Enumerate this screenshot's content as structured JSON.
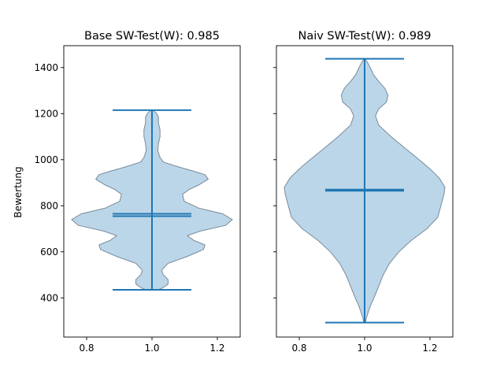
{
  "figure": {
    "background": "#ffffff"
  },
  "colors": {
    "violin_fill": "#1f77b4",
    "violin_fill_opacity": 0.3,
    "violin_edge": "#7a8a99",
    "stats_line": "#1f77b4"
  },
  "chart_data": [
    {
      "type": "violin",
      "title": "Base SW-Test(W): 0.985",
      "xlabel": "",
      "ylabel": "Bewertung",
      "xlim": [
        0.73,
        1.27
      ],
      "ylim": [
        230,
        1495
      ],
      "xticks": [
        0.8,
        1.0,
        1.2
      ],
      "xtick_labels": [
        "0.8",
        "1.0",
        "1.2"
      ],
      "yticks": [
        400,
        600,
        800,
        1000,
        1200,
        1400
      ],
      "ytick_labels": [
        "400",
        "600",
        "800",
        "1000",
        "1200",
        "1400"
      ],
      "show_ytick_labels": true,
      "position": 1.0,
      "min": 435,
      "max": 1215,
      "mean": 765,
      "median": 755,
      "density_profile": [
        [
          435,
          0.02
        ],
        [
          445,
          0.035
        ],
        [
          460,
          0.05
        ],
        [
          480,
          0.05
        ],
        [
          500,
          0.035
        ],
        [
          520,
          0.03
        ],
        [
          550,
          0.05
        ],
        [
          580,
          0.11
        ],
        [
          610,
          0.16
        ],
        [
          630,
          0.165
        ],
        [
          650,
          0.13
        ],
        [
          670,
          0.11
        ],
        [
          690,
          0.15
        ],
        [
          715,
          0.23
        ],
        [
          740,
          0.25
        ],
        [
          765,
          0.22
        ],
        [
          790,
          0.145
        ],
        [
          820,
          0.1
        ],
        [
          850,
          0.095
        ],
        [
          870,
          0.115
        ],
        [
          890,
          0.145
        ],
        [
          915,
          0.175
        ],
        [
          935,
          0.165
        ],
        [
          950,
          0.13
        ],
        [
          970,
          0.08
        ],
        [
          990,
          0.035
        ],
        [
          1010,
          0.025
        ],
        [
          1040,
          0.018
        ],
        [
          1070,
          0.02
        ],
        [
          1100,
          0.025
        ],
        [
          1130,
          0.025
        ],
        [
          1160,
          0.02
        ],
        [
          1185,
          0.02
        ],
        [
          1200,
          0.015
        ],
        [
          1215,
          0.004
        ]
      ]
    },
    {
      "type": "violin",
      "title": "Naiv SW-Test(W): 0.989",
      "xlabel": "",
      "ylabel": "",
      "xlim": [
        0.73,
        1.27
      ],
      "ylim": [
        230,
        1495
      ],
      "xticks": [
        0.8,
        1.0,
        1.2
      ],
      "xtick_labels": [
        "0.8",
        "1.0",
        "1.2"
      ],
      "yticks": [
        400,
        600,
        800,
        1000,
        1200,
        1400
      ],
      "ytick_labels": [
        "400",
        "600",
        "800",
        "1000",
        "1200",
        "1400"
      ],
      "show_ytick_labels": false,
      "position": 1.0,
      "min": 293,
      "max": 1438,
      "mean": 870,
      "median": 865,
      "density_profile": [
        [
          293,
          0.003
        ],
        [
          310,
          0.005
        ],
        [
          340,
          0.012
        ],
        [
          370,
          0.02
        ],
        [
          400,
          0.03
        ],
        [
          450,
          0.045
        ],
        [
          500,
          0.06
        ],
        [
          550,
          0.08
        ],
        [
          600,
          0.11
        ],
        [
          650,
          0.15
        ],
        [
          700,
          0.2
        ],
        [
          750,
          0.235
        ],
        [
          800,
          0.245
        ],
        [
          850,
          0.255
        ],
        [
          880,
          0.258
        ],
        [
          920,
          0.24
        ],
        [
          960,
          0.21
        ],
        [
          1000,
          0.175
        ],
        [
          1050,
          0.13
        ],
        [
          1100,
          0.085
        ],
        [
          1150,
          0.045
        ],
        [
          1190,
          0.035
        ],
        [
          1220,
          0.045
        ],
        [
          1250,
          0.07
        ],
        [
          1280,
          0.075
        ],
        [
          1310,
          0.065
        ],
        [
          1340,
          0.045
        ],
        [
          1370,
          0.028
        ],
        [
          1400,
          0.018
        ],
        [
          1420,
          0.01
        ],
        [
          1438,
          0.002
        ]
      ]
    }
  ]
}
